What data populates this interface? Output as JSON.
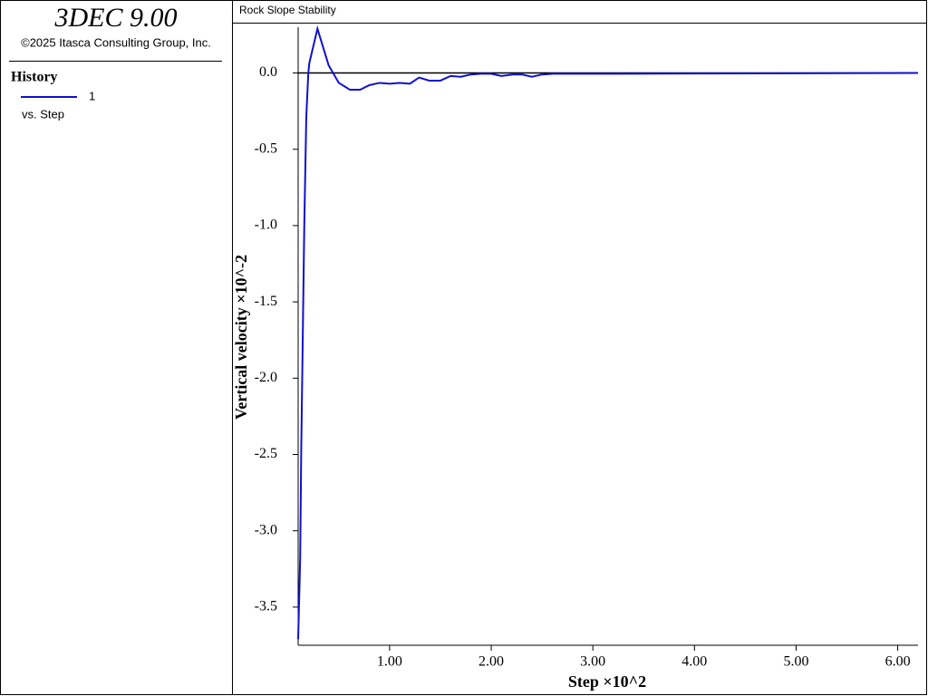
{
  "header": {
    "title": "3DEC 9.00",
    "copyright": "©2025 Itasca Consulting Group, Inc.",
    "legend_title": "History",
    "legend_vs": "vs. Step"
  },
  "chart_data": {
    "type": "line",
    "title": "Rock Slope Stability",
    "x_label": "Step ×10^2",
    "y_label": "Vertical velocity ×10^-2",
    "xlim": [
      0.1,
      6.2
    ],
    "ylim": [
      -3.75,
      0.3
    ],
    "xticks": [
      {
        "value": 1,
        "label": "1.00"
      },
      {
        "value": 2,
        "label": "2.00"
      },
      {
        "value": 3,
        "label": "3.00"
      },
      {
        "value": 4,
        "label": "4.00"
      },
      {
        "value": 5,
        "label": "5.00"
      },
      {
        "value": 6,
        "label": "6.00"
      }
    ],
    "yticks": [
      {
        "value": 0,
        "label": "0.0"
      },
      -0.5,
      {
        "value": -1,
        "label": "-1.0"
      },
      -1.5,
      {
        "value": -2,
        "label": "-2.0"
      },
      -2.5,
      {
        "value": -3,
        "label": "-3.0"
      },
      -3.5
    ],
    "x": [
      0.1,
      0.12,
      0.13,
      0.16,
      0.18,
      0.2,
      0.21,
      0.29,
      0.4,
      0.5,
      0.61,
      0.71,
      0.8,
      0.9,
      1.0,
      1.1,
      1.2,
      1.29,
      1.39,
      1.5,
      1.6,
      1.7,
      1.8,
      1.9,
      2.0,
      2.1,
      2.21,
      2.3,
      2.4,
      2.5,
      2.61,
      3.23,
      6.2
    ],
    "series": [
      {
        "name": "1",
        "color": "#1010d0",
        "values": [
          -3.71,
          -3.18,
          -2.49,
          -1.01,
          -0.29,
          0,
          0.065,
          0.29,
          0.05,
          -0.065,
          -0.11,
          -0.11,
          -0.08,
          -0.065,
          -0.07,
          -0.065,
          -0.07,
          -0.03,
          -0.05,
          -0.05,
          -0.02,
          -0.025,
          -0.01,
          -0.005,
          -0.005,
          -0.02,
          -0.01,
          -0.01,
          -0.025,
          -0.01,
          -0.005,
          -0.005,
          0
        ]
      }
    ]
  }
}
